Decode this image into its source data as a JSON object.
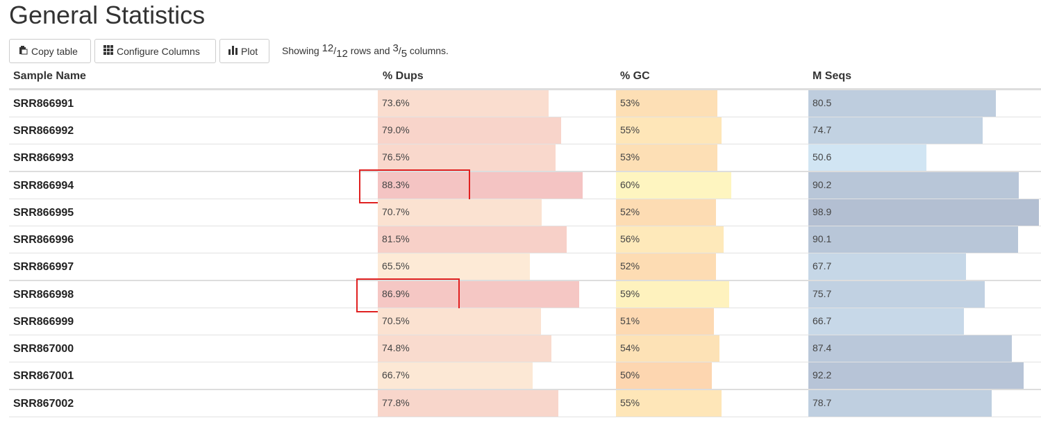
{
  "page": {
    "title": "General Statistics"
  },
  "toolbar": {
    "copy_label": "Copy table",
    "configure_label": "Configure Columns",
    "plot_label": "Plot",
    "showing_prefix": "Showing ",
    "rows_shown": "12",
    "rows_total": "12",
    "rows_word": " rows and ",
    "cols_shown": "3",
    "cols_total": "5",
    "cols_word": " columns."
  },
  "table": {
    "headers": {
      "sample": "Sample Name",
      "dups": "% Dups",
      "gc": "% GC",
      "mseqs": "M Seqs"
    },
    "rows": [
      {
        "sample": "SRR866991",
        "dups": "73.6%",
        "dups_v": 73.6,
        "gc": "53%",
        "gc_v": 53,
        "mseqs": "80.5",
        "mseqs_v": 80.5
      },
      {
        "sample": "SRR866992",
        "dups": "79.0%",
        "dups_v": 79.0,
        "gc": "55%",
        "gc_v": 55,
        "mseqs": "74.7",
        "mseqs_v": 74.7
      },
      {
        "sample": "SRR866993",
        "dups": "76.5%",
        "dups_v": 76.5,
        "gc": "53%",
        "gc_v": 53,
        "mseqs": "50.6",
        "mseqs_v": 50.6
      },
      {
        "sample": "SRR866994",
        "dups": "88.3%",
        "dups_v": 88.3,
        "gc": "60%",
        "gc_v": 60,
        "mseqs": "90.2",
        "mseqs_v": 90.2,
        "highlight": true
      },
      {
        "sample": "SRR866995",
        "dups": "70.7%",
        "dups_v": 70.7,
        "gc": "52%",
        "gc_v": 52,
        "mseqs": "98.9",
        "mseqs_v": 98.9
      },
      {
        "sample": "SRR866996",
        "dups": "81.5%",
        "dups_v": 81.5,
        "gc": "56%",
        "gc_v": 56,
        "mseqs": "90.1",
        "mseqs_v": 90.1
      },
      {
        "sample": "SRR866997",
        "dups": "65.5%",
        "dups_v": 65.5,
        "gc": "52%",
        "gc_v": 52,
        "mseqs": "67.7",
        "mseqs_v": 67.7
      },
      {
        "sample": "SRR866998",
        "dups": "86.9%",
        "dups_v": 86.9,
        "gc": "59%",
        "gc_v": 59,
        "mseqs": "75.7",
        "mseqs_v": 75.7,
        "highlight": true
      },
      {
        "sample": "SRR866999",
        "dups": "70.5%",
        "dups_v": 70.5,
        "gc": "51%",
        "gc_v": 51,
        "mseqs": "66.7",
        "mseqs_v": 66.7
      },
      {
        "sample": "SRR867000",
        "dups": "74.8%",
        "dups_v": 74.8,
        "gc": "54%",
        "gc_v": 54,
        "mseqs": "87.4",
        "mseqs_v": 87.4
      },
      {
        "sample": "SRR867001",
        "dups": "66.7%",
        "dups_v": 66.7,
        "gc": "50%",
        "gc_v": 50,
        "mseqs": "92.2",
        "mseqs_v": 92.2
      },
      {
        "sample": "SRR867002",
        "dups": "77.8%",
        "dups_v": 77.8,
        "gc": "55%",
        "gc_v": 55,
        "mseqs": "78.7",
        "mseqs_v": 78.7
      }
    ]
  },
  "colors": {
    "dups_low": "#fdebd6",
    "dups_high": "#f4c3c2",
    "gc_low": "#fdd6b0",
    "gc_high": "#fef5c0",
    "mseqs_low": "#d1e5f3",
    "mseqs_high": "#b3bfd2",
    "highlight_border": "#e02020"
  },
  "icons": {
    "copy": "clipboard-icon",
    "configure": "grid-icon",
    "plot": "bar-chart-icon"
  }
}
